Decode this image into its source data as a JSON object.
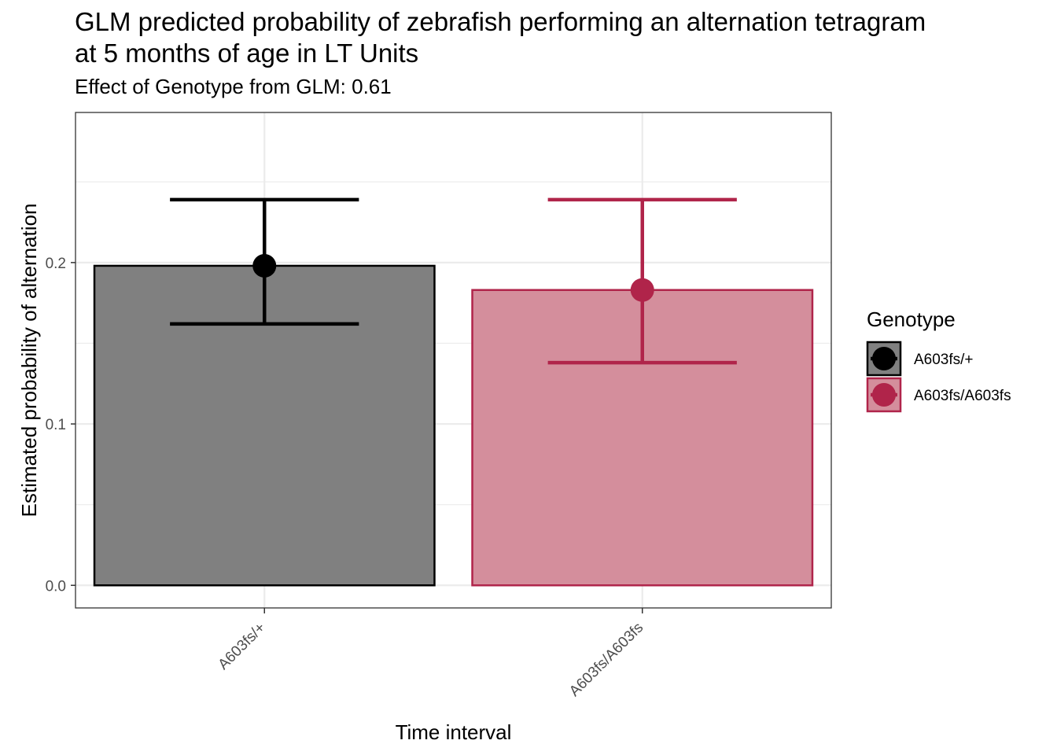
{
  "title": "GLM predicted probability of zebrafish performing an alternation tetragram at 5 months of age in LT Units",
  "subtitle": "Effect of Genotype from GLM: 0.61",
  "chart_data": {
    "type": "bar",
    "title": "GLM predicted probability of zebrafish performing an alternation tetragram at 5 months of age in LT Units",
    "subtitle": "Effect of Genotype from GLM: 0.61",
    "xlabel": "Time interval",
    "ylabel": "Estimated probability of alternation",
    "categories": [
      "A603fs/+",
      "A603fs/A603fs"
    ],
    "values": [
      0.198,
      0.183
    ],
    "error_low": [
      0.162,
      0.138
    ],
    "error_high": [
      0.239,
      0.239
    ],
    "bar_colors": [
      "#808080",
      "#d48e9c"
    ],
    "point_colors": [
      "#000000",
      "#b0244a"
    ],
    "ylim": [
      -0.014,
      0.293
    ],
    "yticks": [
      0.0,
      0.1,
      0.2
    ],
    "ytick_labels": [
      "0.0",
      "0.1",
      "0.2"
    ],
    "grid": true,
    "legend": {
      "title": "Genotype",
      "position": "right",
      "entries": [
        "A603fs/+",
        "A603fs/A603fs"
      ]
    }
  }
}
